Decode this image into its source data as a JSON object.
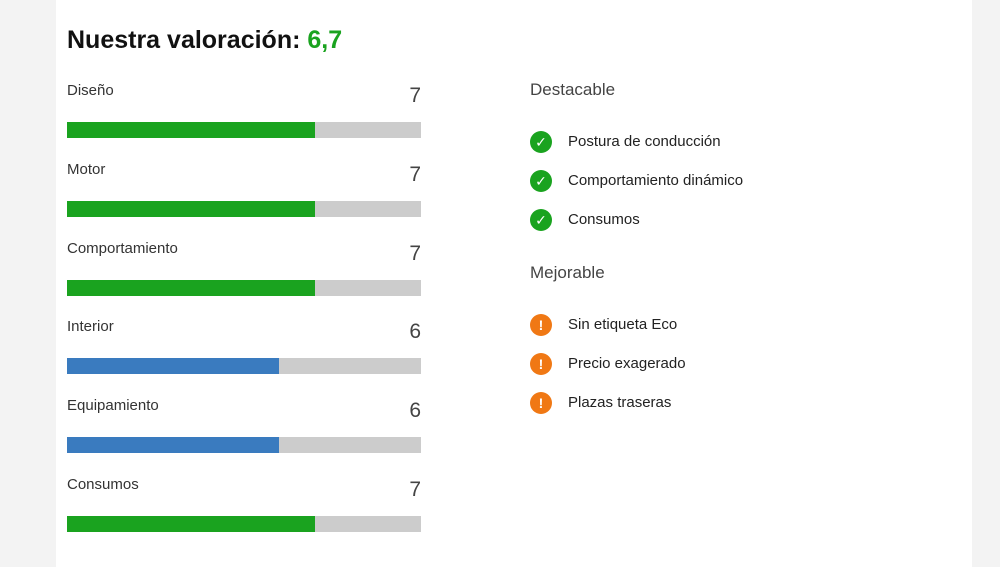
{
  "header": {
    "title_prefix": "Nuestra valoración: ",
    "overall_score": "6,7"
  },
  "ratings": [
    {
      "label": "Diseño",
      "value": "7",
      "fraction": 0.7,
      "color": "#1aa31f"
    },
    {
      "label": "Motor",
      "value": "7",
      "fraction": 0.7,
      "color": "#1aa31f"
    },
    {
      "label": "Comportamiento",
      "value": "7",
      "fraction": 0.7,
      "color": "#1aa31f"
    },
    {
      "label": "Interior",
      "value": "6",
      "fraction": 0.6,
      "color": "#3a7bbf"
    },
    {
      "label": "Equipamiento",
      "value": "6",
      "fraction": 0.6,
      "color": "#3a7bbf"
    },
    {
      "label": "Consumos",
      "value": "7",
      "fraction": 0.7,
      "color": "#1aa31f"
    }
  ],
  "pros": {
    "title": "Destacable",
    "icon": "check-circle-icon",
    "items": [
      "Postura de conducción",
      "Comportamiento dinámico",
      "Consumos"
    ]
  },
  "cons": {
    "title": "Mejorable",
    "icon": "exclamation-circle-icon",
    "items": [
      "Sin etiqueta Eco",
      "Precio exagerado",
      "Plazas traseras"
    ]
  }
}
